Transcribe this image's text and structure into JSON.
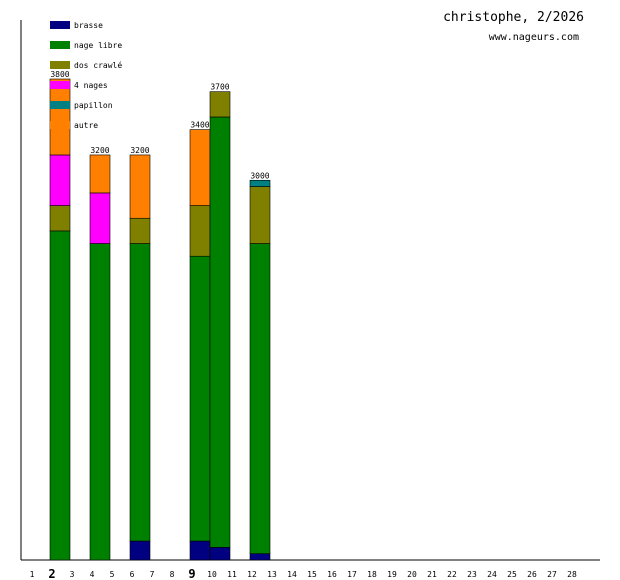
{
  "chart_data": {
    "type": "bar",
    "stacked": true,
    "title": "christophe, 2/2026",
    "subtitle": "www.nageurs.com",
    "xlabel": "",
    "ylabel": "",
    "ylim": [
      0,
      3800
    ],
    "categories": [
      "1",
      "2",
      "3",
      "4",
      "5",
      "6",
      "7",
      "8",
      "9",
      "10",
      "11",
      "12",
      "13",
      "14",
      "15",
      "16",
      "17",
      "18",
      "19",
      "20",
      "21",
      "22",
      "23",
      "24",
      "25",
      "26",
      "27",
      "28"
    ],
    "bold_categories": [
      "2",
      "9"
    ],
    "series": [
      {
        "name": "brasse",
        "color": "#000080",
        "values": [
          0,
          0,
          0,
          0,
          0,
          150,
          0,
          0,
          150,
          100,
          0,
          50,
          0,
          0,
          0,
          0,
          0,
          0,
          0,
          0,
          0,
          0,
          0,
          0,
          0,
          0,
          0,
          0
        ]
      },
      {
        "name": "nage libre",
        "color": "#008000",
        "values": [
          0,
          2600,
          0,
          2500,
          0,
          2350,
          0,
          0,
          2250,
          3400,
          0,
          2450,
          0,
          0,
          0,
          0,
          0,
          0,
          0,
          0,
          0,
          0,
          0,
          0,
          0,
          0,
          0,
          0
        ]
      },
      {
        "name": "dos crawlé",
        "color": "#808000",
        "values": [
          0,
          200,
          0,
          0,
          0,
          200,
          0,
          0,
          400,
          200,
          0,
          450,
          0,
          0,
          0,
          0,
          0,
          0,
          0,
          0,
          0,
          0,
          0,
          0,
          0,
          0,
          0,
          0
        ]
      },
      {
        "name": "4 nages",
        "color": "#ff00ff",
        "values": [
          0,
          400,
          0,
          400,
          0,
          0,
          0,
          0,
          0,
          0,
          0,
          0,
          0,
          0,
          0,
          0,
          0,
          0,
          0,
          0,
          0,
          0,
          0,
          0,
          0,
          0,
          0,
          0
        ]
      },
      {
        "name": "papillon",
        "color": "#008080",
        "values": [
          0,
          0,
          0,
          0,
          0,
          0,
          0,
          0,
          0,
          0,
          0,
          50,
          0,
          0,
          0,
          0,
          0,
          0,
          0,
          0,
          0,
          0,
          0,
          0,
          0,
          0,
          0,
          0
        ]
      },
      {
        "name": "autre",
        "color": "#ff8000",
        "values": [
          0,
          600,
          0,
          300,
          0,
          500,
          0,
          0,
          600,
          0,
          0,
          0,
          0,
          0,
          0,
          0,
          0,
          0,
          0,
          0,
          0,
          0,
          0,
          0,
          0,
          0,
          0,
          0
        ]
      }
    ],
    "totals": [
      0,
      3800,
      0,
      3200,
      0,
      3200,
      0,
      0,
      3400,
      3700,
      0,
      3000,
      0,
      0,
      0,
      0,
      0,
      0,
      0,
      0,
      0,
      0,
      0,
      0,
      0,
      0,
      0,
      0
    ],
    "grid": false,
    "legend_position": "top-left"
  }
}
